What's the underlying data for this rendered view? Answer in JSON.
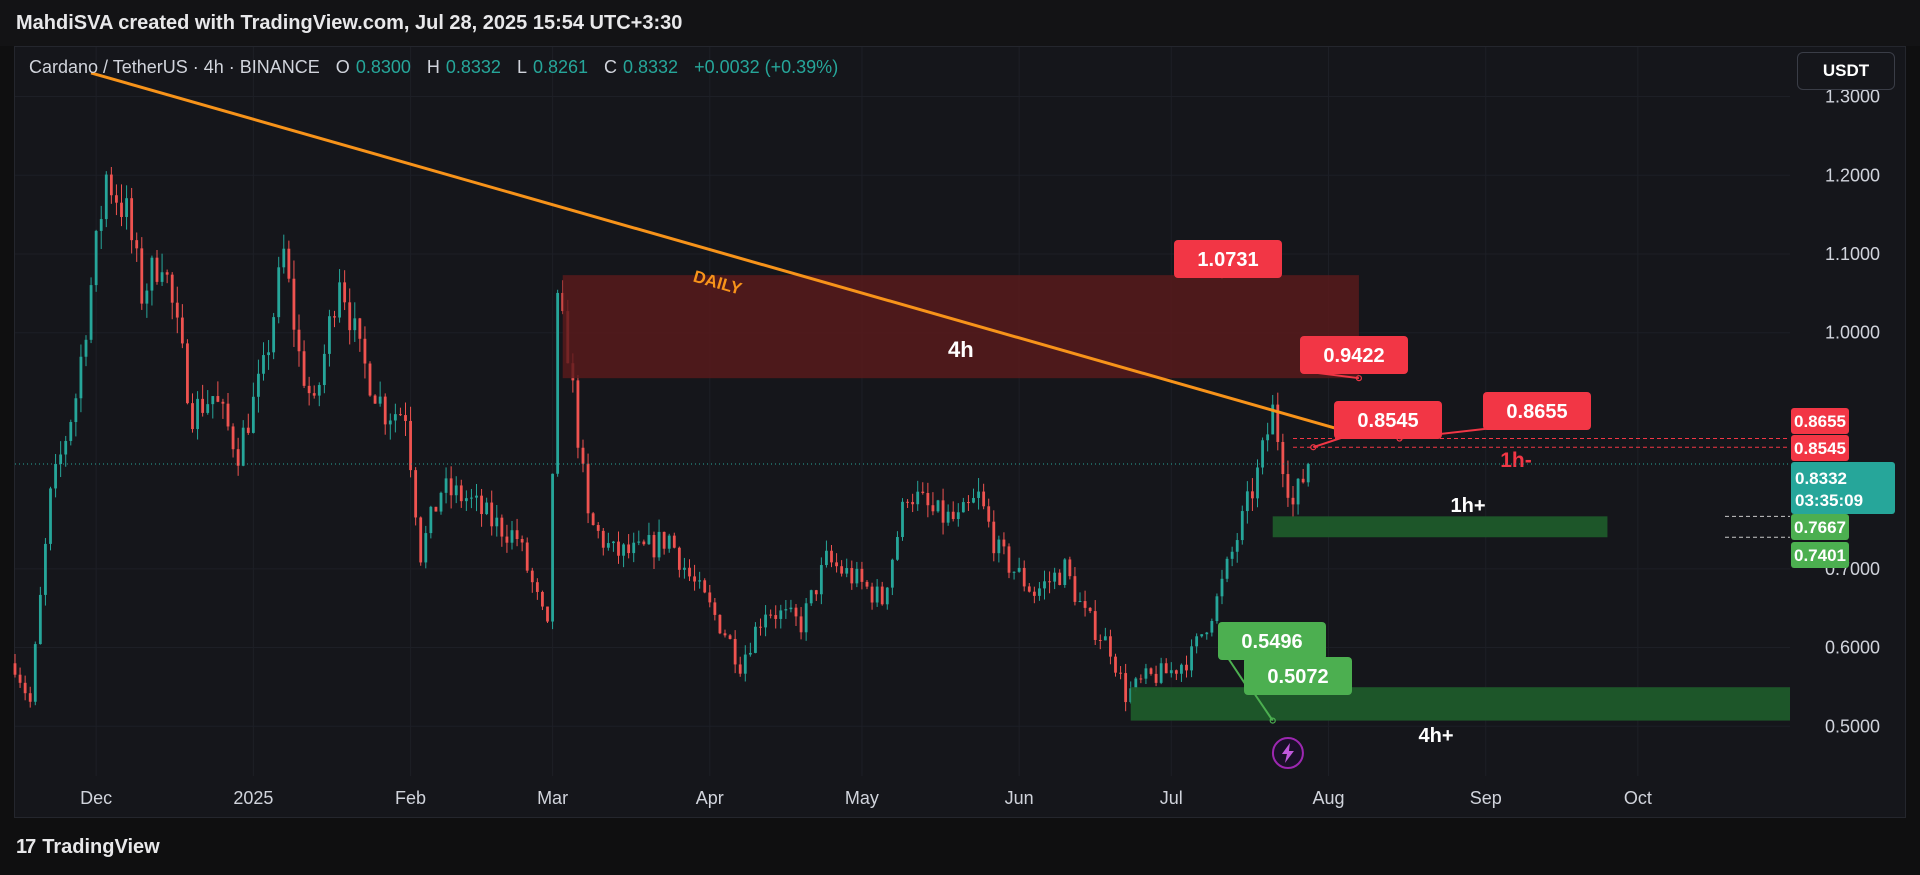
{
  "header": {
    "title": "MahdiSVA created with TradingView.com, Jul 28, 2025 15:54 UTC+3:30"
  },
  "legend": {
    "symbol": "Cardano / TetherUS · 4h · BINANCE",
    "open_label": "O",
    "open": "0.8300",
    "high_label": "H",
    "high": "0.8332",
    "low_label": "L",
    "low": "0.8261",
    "close_label": "C",
    "close": "0.8332",
    "change": "+0.0032 (+0.39%)"
  },
  "currency_button": "USDT",
  "footer": {
    "brand": "TradingView",
    "logo": "17"
  },
  "colors": {
    "up": "#26a69a",
    "down": "#ef5350",
    "trendline": "#f7931a",
    "supply_zone": "#5a1a1c",
    "demand_zone": "#1e5a2a",
    "callout_red": "#f23645",
    "callout_green": "#4caf50"
  },
  "chart_data": {
    "type": "candlestick",
    "symbol": "ADA/USDT",
    "timeframe": "4h",
    "x_tick_labels": [
      "Dec",
      "2025",
      "Feb",
      "Mar",
      "Apr",
      "May",
      "Jun",
      "Jul",
      "Aug",
      "Sep",
      "Oct"
    ],
    "x_ticks": [
      "2024-12-01",
      "2025-01-01",
      "2025-02-01",
      "2025-03-01",
      "2025-04-01",
      "2025-05-01",
      "2025-06-01",
      "2025-07-01",
      "2025-08-01",
      "2025-09-01",
      "2025-10-01"
    ],
    "xlim": [
      "2024-11-15",
      "2025-10-31"
    ],
    "y_ticks": [
      0.5,
      0.6,
      0.7,
      1.0,
      1.1,
      1.2,
      1.3
    ],
    "y_tick_labels": [
      "0.5000",
      "0.6000",
      "0.7000",
      "1.0000",
      "1.1000",
      "1.2000",
      "1.3000"
    ],
    "ylim": [
      0.48,
      1.335
    ],
    "price_path": [
      [
        "2024-11-15",
        0.58
      ],
      [
        "2024-11-18",
        0.53
      ],
      [
        "2024-11-22",
        0.79
      ],
      [
        "2024-11-27",
        0.92
      ],
      [
        "2024-12-03",
        1.2
      ],
      [
        "2024-12-07",
        1.15
      ],
      [
        "2024-12-10",
        1.05
      ],
      [
        "2024-12-14",
        1.1
      ],
      [
        "2024-12-20",
        0.9
      ],
      [
        "2024-12-24",
        0.92
      ],
      [
        "2024-12-29",
        0.85
      ],
      [
        "2025-01-03",
        0.95
      ],
      [
        "2025-01-07",
        1.1
      ],
      [
        "2025-01-10",
        0.97
      ],
      [
        "2025-01-13",
        0.9
      ],
      [
        "2025-01-18",
        1.08
      ],
      [
        "2025-01-22",
        0.97
      ],
      [
        "2025-01-27",
        0.9
      ],
      [
        "2025-01-31",
        0.9
      ],
      [
        "2025-02-03",
        0.72
      ],
      [
        "2025-02-07",
        0.8
      ],
      [
        "2025-02-12",
        0.79
      ],
      [
        "2025-02-17",
        0.76
      ],
      [
        "2025-02-22",
        0.74
      ],
      [
        "2025-02-28",
        0.62
      ],
      [
        "2025-03-02",
        1.03
      ],
      [
        "2025-03-04",
        0.98
      ],
      [
        "2025-03-08",
        0.76
      ],
      [
        "2025-03-13",
        0.72
      ],
      [
        "2025-03-18",
        0.72
      ],
      [
        "2025-03-24",
        0.74
      ],
      [
        "2025-03-28",
        0.69
      ],
      [
        "2025-04-04",
        0.62
      ],
      [
        "2025-04-07",
        0.58
      ],
      [
        "2025-04-12",
        0.65
      ],
      [
        "2025-04-19",
        0.63
      ],
      [
        "2025-04-24",
        0.71
      ],
      [
        "2025-04-29",
        0.69
      ],
      [
        "2025-05-05",
        0.66
      ],
      [
        "2025-05-10",
        0.8
      ],
      [
        "2025-05-15",
        0.77
      ],
      [
        "2025-05-20",
        0.76
      ],
      [
        "2025-05-24",
        0.79
      ],
      [
        "2025-05-28",
        0.72
      ],
      [
        "2025-06-04",
        0.67
      ],
      [
        "2025-06-10",
        0.7
      ],
      [
        "2025-06-14",
        0.64
      ],
      [
        "2025-06-19",
        0.6
      ],
      [
        "2025-06-22",
        0.54
      ],
      [
        "2025-06-26",
        0.56
      ],
      [
        "2025-07-01",
        0.57
      ],
      [
        "2025-07-05",
        0.59
      ],
      [
        "2025-07-10",
        0.66
      ],
      [
        "2025-07-14",
        0.74
      ],
      [
        "2025-07-18",
        0.82
      ],
      [
        "2025-07-21",
        0.9
      ],
      [
        "2025-07-23",
        0.84
      ],
      [
        "2025-07-25",
        0.78
      ],
      [
        "2025-07-28",
        0.8332
      ]
    ],
    "current_price": "0.8332",
    "countdown": "03:35:09",
    "trendlines": [
      {
        "label": "DAILY",
        "points": [
          [
            "2024-11-30",
            1.33
          ],
          [
            "2025-08-06",
            0.872
          ]
        ]
      }
    ],
    "zones": [
      {
        "label": "4h",
        "kind": "supply",
        "x0": "2025-03-03",
        "x1": "2025-08-07",
        "y0": 0.9422,
        "y1": 1.0731
      },
      {
        "label": "1h+",
        "kind": "demand",
        "x0": "2025-07-21",
        "x1": "2025-09-25",
        "y0": 0.7401,
        "y1": 0.7667
      },
      {
        "label": "4h+",
        "kind": "demand",
        "x0": "2025-06-23",
        "x1": "2025-10-31",
        "y0": 0.5072,
        "y1": 0.5496
      }
    ],
    "levels": [
      {
        "label": "1h-",
        "kind": "supply",
        "from": "2025-07-25",
        "values": [
          0.8545,
          0.8655
        ]
      }
    ],
    "callouts": [
      {
        "text": "1.0731",
        "kind": "supply",
        "anchor": [
          "2025-07-11",
          1.0731
        ]
      },
      {
        "text": "0.9422",
        "kind": "supply",
        "anchor": [
          "2025-08-07",
          0.9422
        ]
      },
      {
        "text": "0.8545",
        "kind": "supply",
        "anchor": [
          "2025-07-29",
          0.8545
        ]
      },
      {
        "text": "0.8655",
        "kind": "supply",
        "anchor": [
          "2025-08-15",
          0.8655
        ]
      },
      {
        "text": "0.5496",
        "kind": "demand",
        "anchor": [
          "2025-07-16",
          0.5496
        ]
      },
      {
        "text": "0.5072",
        "kind": "demand",
        "anchor": [
          "2025-07-21",
          0.5072
        ]
      }
    ],
    "price_axis_labels": [
      {
        "text": "0.8655",
        "kind": "supply",
        "value": 0.8655
      },
      {
        "text": "0.8545",
        "kind": "supply",
        "value": 0.8545
      },
      {
        "text": "0.7667",
        "kind": "demand",
        "value": 0.7667
      },
      {
        "text": "0.7401",
        "kind": "demand",
        "value": 0.7401
      }
    ],
    "marker": {
      "icon": "lightning-icon",
      "date": "2025-07-24"
    }
  }
}
